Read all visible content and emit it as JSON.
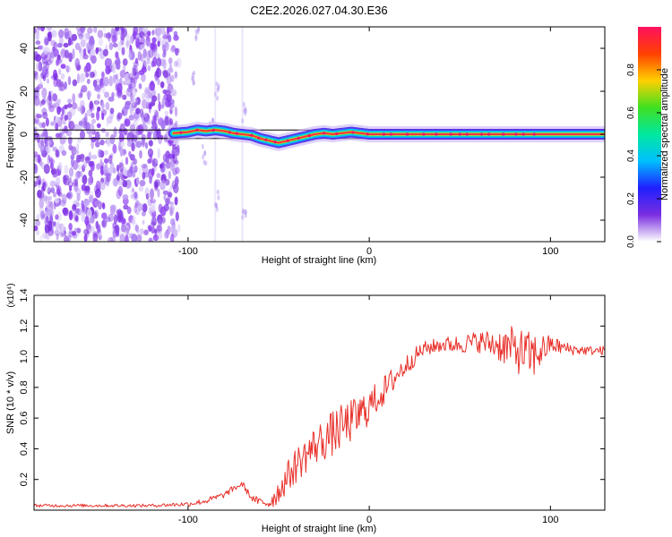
{
  "title": "C2E2.2026.027.04.30.E36",
  "chart_data": [
    {
      "type": "heatmap",
      "xlabel": "Height of straight line (km)",
      "ylabel": "Frequency (Hz)",
      "xlim": [
        -185,
        130
      ],
      "ylim": [
        -50,
        50
      ],
      "x_ticks": [
        -100,
        0,
        100
      ],
      "y_ticks": [
        -40,
        -20,
        0,
        20,
        40
      ],
      "colorbar": {
        "label": "Normalized spectral amplitude",
        "range": [
          0,
          1
        ],
        "ticks": [
          "0.0",
          "0.2",
          "0.4",
          "0.6",
          "0.8"
        ],
        "colors": [
          "#ffffff",
          "#7a2ee0",
          "#2020ff",
          "#00c0ff",
          "#00e8a0",
          "#40e020",
          "#ffd000",
          "#ff4000",
          "#ff1060"
        ]
      },
      "noise_region_x": [
        -185,
        -105
      ],
      "signal_trace": {
        "x": [
          -108,
          -100,
          -95,
          -90,
          -85,
          -80,
          -75,
          -70,
          -65,
          -60,
          -55,
          -50,
          -45,
          -40,
          -35,
          -30,
          -25,
          -20,
          -15,
          -10,
          -5,
          0,
          10,
          20,
          40,
          60,
          80,
          95,
          130
        ],
        "frequency": [
          0.5,
          1,
          2,
          1.5,
          2,
          1.5,
          0.5,
          0,
          -0.5,
          -2,
          -3,
          -4,
          -3,
          -2,
          -1,
          0,
          0.5,
          0,
          0.5,
          1,
          0.5,
          0,
          0,
          0,
          0,
          0,
          0,
          0,
          0
        ]
      },
      "reference_band": [
        -2,
        2
      ]
    },
    {
      "type": "line",
      "xlabel": "Height of straight line (km)",
      "ylabel": "SNR (10 * v/v)",
      "y_multiplier": "(x10⁴)",
      "xlim": [
        -185,
        130
      ],
      "ylim": [
        0,
        1.4
      ],
      "x_ticks": [
        -100,
        0,
        100
      ],
      "y_ticks": [
        0.2,
        0.4,
        0.6,
        0.8,
        1.0,
        1.2,
        1.4
      ],
      "series": [
        {
          "color": "#e8302a",
          "x": [
            -185,
            -150,
            -120,
            -100,
            -90,
            -80,
            -75,
            -70,
            -65,
            -60,
            -55,
            -50,
            -45,
            -40,
            -35,
            -30,
            -25,
            -20,
            -15,
            -10,
            -5,
            0,
            5,
            10,
            15,
            20,
            25,
            30,
            40,
            50,
            60,
            70,
            80,
            90,
            100,
            110,
            120,
            130
          ],
          "mean": [
            0.03,
            0.03,
            0.03,
            0.04,
            0.06,
            0.1,
            0.14,
            0.17,
            0.08,
            0.05,
            0.05,
            0.12,
            0.22,
            0.3,
            0.36,
            0.42,
            0.46,
            0.5,
            0.54,
            0.58,
            0.62,
            0.68,
            0.74,
            0.8,
            0.88,
            0.94,
            1.0,
            1.05,
            1.08,
            1.08,
            1.1,
            1.08,
            1.05,
            1.0,
            1.08,
            1.05,
            1.04,
            1.04
          ],
          "amplitude": [
            0.01,
            0.01,
            0.01,
            0.015,
            0.02,
            0.02,
            0.02,
            0.02,
            0.02,
            0.03,
            0.05,
            0.08,
            0.1,
            0.12,
            0.12,
            0.13,
            0.14,
            0.15,
            0.15,
            0.14,
            0.14,
            0.12,
            0.1,
            0.1,
            0.08,
            0.07,
            0.06,
            0.05,
            0.05,
            0.06,
            0.07,
            0.1,
            0.15,
            0.16,
            0.06,
            0.04,
            0.03,
            0.03
          ]
        }
      ]
    }
  ]
}
